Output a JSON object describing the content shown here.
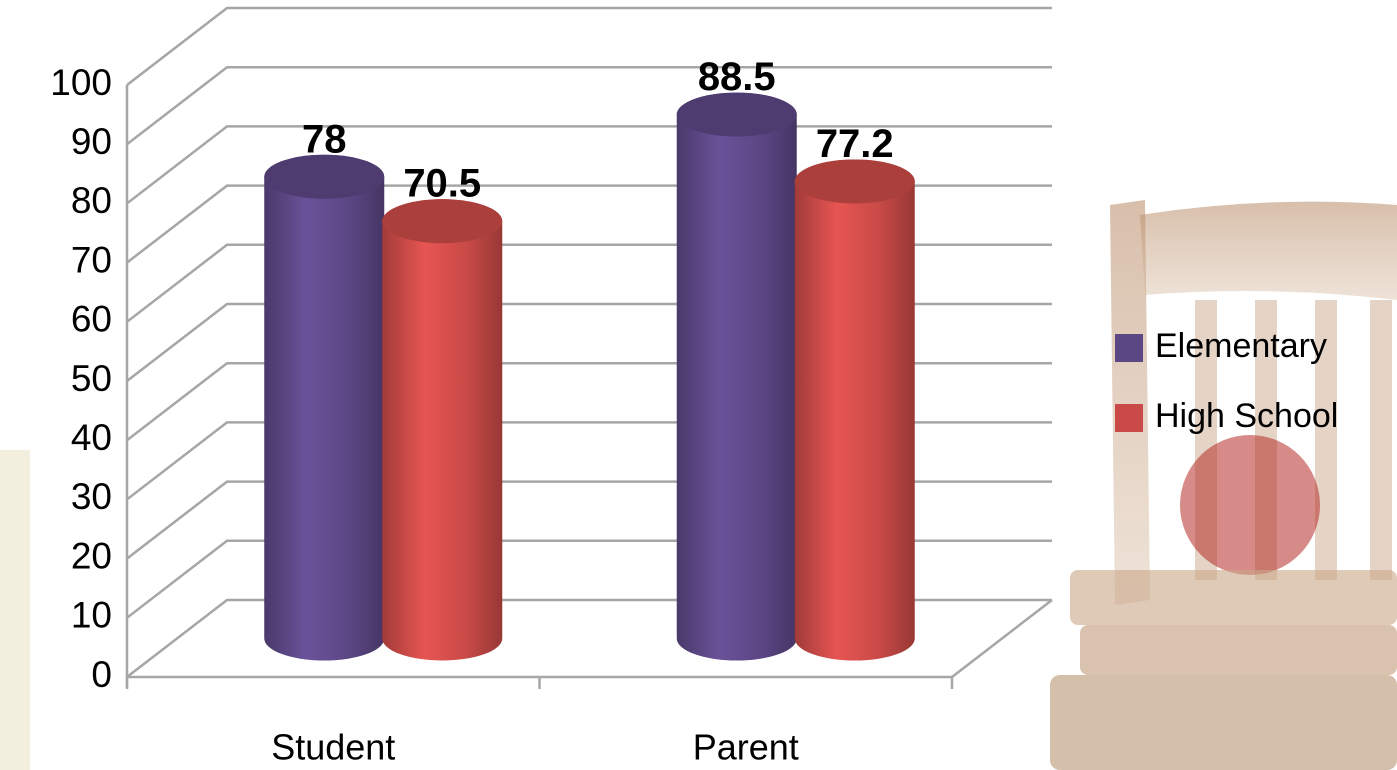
{
  "chart_data": {
    "type": "bar",
    "categories": [
      "Student",
      "Parent"
    ],
    "series": [
      {
        "name": "Elementary",
        "color": "#5c4785",
        "values": [
          78,
          88.5
        ]
      },
      {
        "name": "High School",
        "color": "#c94a47",
        "values": [
          70.5,
          77.2
        ]
      }
    ],
    "ylim": [
      0,
      100
    ],
    "yticks": [
      0,
      10,
      20,
      30,
      40,
      50,
      60,
      70,
      80,
      90,
      100
    ],
    "grid": true,
    "legend": "right"
  }
}
